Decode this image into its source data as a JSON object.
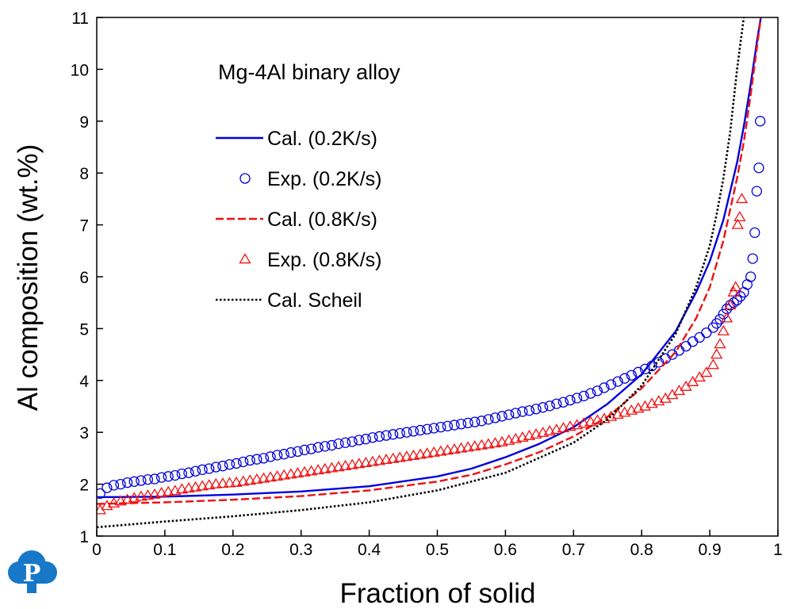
{
  "chart_data": {
    "type": "line",
    "title": "",
    "annotation": "Mg-4Al binary alloy",
    "xlabel": "Fraction of solid",
    "ylabel": "Al composition (wt.%)",
    "xlim": [
      0,
      1
    ],
    "ylim": [
      1,
      11
    ],
    "x_ticks": [
      0,
      0.1,
      0.2,
      0.3,
      0.4,
      0.5,
      0.6,
      0.7,
      0.8,
      0.9,
      1
    ],
    "x_tick_labels": [
      "0",
      "0.1",
      "0.2",
      "0.3",
      "0.4",
      "0.5",
      "0.6",
      "0.7",
      "0.8",
      "0.9",
      "1"
    ],
    "y_ticks": [
      1,
      2,
      3,
      4,
      5,
      6,
      7,
      8,
      9,
      10,
      11
    ],
    "y_tick_labels": [
      "1",
      "2",
      "3",
      "4",
      "5",
      "6",
      "7",
      "8",
      "9",
      "10",
      "11"
    ],
    "grid": false,
    "legend_position": "upper-left",
    "series": [
      {
        "name": "Cal. (0.2K/s)",
        "kind": "line",
        "style": "solid",
        "color": "#0000dd",
        "x": [
          0,
          0.1,
          0.2,
          0.3,
          0.4,
          0.5,
          0.55,
          0.6,
          0.65,
          0.7,
          0.75,
          0.8,
          0.85,
          0.88,
          0.9,
          0.92,
          0.94,
          0.95,
          0.96,
          0.97,
          0.975
        ],
        "y": [
          1.75,
          1.76,
          1.8,
          1.86,
          1.96,
          2.15,
          2.3,
          2.52,
          2.78,
          3.1,
          3.55,
          4.12,
          4.95,
          5.7,
          6.3,
          7.1,
          8.2,
          8.9,
          9.7,
          10.6,
          11.0
        ]
      },
      {
        "name": "Exp. (0.2K/s)",
        "kind": "scatter",
        "marker": "circle",
        "color": "#0000dd",
        "x": [
          0.005,
          0.015,
          0.025,
          0.035,
          0.045,
          0.055,
          0.065,
          0.075,
          0.085,
          0.095,
          0.105,
          0.115,
          0.125,
          0.135,
          0.145,
          0.155,
          0.165,
          0.175,
          0.185,
          0.195,
          0.205,
          0.215,
          0.225,
          0.235,
          0.245,
          0.255,
          0.265,
          0.275,
          0.285,
          0.295,
          0.305,
          0.315,
          0.325,
          0.335,
          0.345,
          0.355,
          0.365,
          0.375,
          0.385,
          0.395,
          0.405,
          0.415,
          0.425,
          0.435,
          0.445,
          0.455,
          0.465,
          0.475,
          0.485,
          0.495,
          0.505,
          0.515,
          0.525,
          0.535,
          0.545,
          0.555,
          0.565,
          0.575,
          0.585,
          0.595,
          0.605,
          0.615,
          0.625,
          0.635,
          0.645,
          0.655,
          0.665,
          0.675,
          0.685,
          0.695,
          0.705,
          0.715,
          0.725,
          0.735,
          0.745,
          0.755,
          0.765,
          0.775,
          0.785,
          0.795,
          0.805,
          0.815,
          0.825,
          0.835,
          0.845,
          0.855,
          0.865,
          0.875,
          0.885,
          0.895,
          0.905,
          0.91,
          0.915,
          0.92,
          0.925,
          0.93,
          0.935,
          0.94,
          0.945,
          0.95,
          0.955,
          0.96,
          0.963,
          0.966,
          0.969,
          0.972,
          0.974
        ],
        "y": [
          1.82,
          1.93,
          1.98,
          2.0,
          2.03,
          2.05,
          2.07,
          2.09,
          2.1,
          2.13,
          2.15,
          2.17,
          2.2,
          2.22,
          2.25,
          2.28,
          2.3,
          2.33,
          2.35,
          2.38,
          2.4,
          2.43,
          2.46,
          2.48,
          2.5,
          2.53,
          2.56,
          2.58,
          2.61,
          2.63,
          2.66,
          2.68,
          2.71,
          2.73,
          2.75,
          2.78,
          2.8,
          2.82,
          2.85,
          2.87,
          2.9,
          2.92,
          2.94,
          2.96,
          2.98,
          3.0,
          3.02,
          3.04,
          3.06,
          3.08,
          3.1,
          3.12,
          3.14,
          3.16,
          3.18,
          3.2,
          3.22,
          3.25,
          3.28,
          3.31,
          3.34,
          3.37,
          3.4,
          3.42,
          3.45,
          3.48,
          3.51,
          3.55,
          3.58,
          3.62,
          3.66,
          3.7,
          3.75,
          3.8,
          3.86,
          3.92,
          3.98,
          4.04,
          4.1,
          4.16,
          4.22,
          4.28,
          4.35,
          4.42,
          4.5,
          4.58,
          4.66,
          4.75,
          4.83,
          4.92,
          5.02,
          5.1,
          5.18,
          5.28,
          5.38,
          5.45,
          5.5,
          5.55,
          5.62,
          5.7,
          5.85,
          6.0,
          6.35,
          6.85,
          7.65,
          8.1,
          9.0
        ]
      },
      {
        "name": "Cal. (0.8K/s)",
        "kind": "line",
        "style": "dashed",
        "color": "#ee1111",
        "x": [
          0,
          0.1,
          0.2,
          0.3,
          0.4,
          0.5,
          0.55,
          0.6,
          0.65,
          0.7,
          0.75,
          0.8,
          0.85,
          0.88,
          0.9,
          0.92,
          0.94,
          0.95,
          0.96,
          0.97,
          0.975
        ],
        "y": [
          1.62,
          1.65,
          1.7,
          1.77,
          1.88,
          2.05,
          2.18,
          2.38,
          2.62,
          2.92,
          3.3,
          3.85,
          4.55,
          5.2,
          5.8,
          6.7,
          7.9,
          8.6,
          9.5,
          10.5,
          11.0
        ]
      },
      {
        "name": "Exp. (0.8K/s)",
        "kind": "scatter",
        "marker": "triangle",
        "color": "#ee1111",
        "x": [
          0.005,
          0.015,
          0.025,
          0.035,
          0.045,
          0.055,
          0.065,
          0.075,
          0.085,
          0.095,
          0.105,
          0.115,
          0.125,
          0.135,
          0.145,
          0.155,
          0.165,
          0.175,
          0.185,
          0.195,
          0.205,
          0.215,
          0.225,
          0.235,
          0.245,
          0.255,
          0.265,
          0.275,
          0.285,
          0.295,
          0.305,
          0.315,
          0.325,
          0.335,
          0.345,
          0.355,
          0.365,
          0.375,
          0.385,
          0.395,
          0.405,
          0.415,
          0.425,
          0.435,
          0.445,
          0.455,
          0.465,
          0.475,
          0.485,
          0.495,
          0.505,
          0.515,
          0.525,
          0.535,
          0.545,
          0.555,
          0.565,
          0.575,
          0.585,
          0.595,
          0.605,
          0.615,
          0.625,
          0.635,
          0.645,
          0.655,
          0.665,
          0.675,
          0.685,
          0.695,
          0.705,
          0.715,
          0.725,
          0.735,
          0.745,
          0.755,
          0.765,
          0.775,
          0.785,
          0.795,
          0.805,
          0.815,
          0.825,
          0.835,
          0.845,
          0.855,
          0.865,
          0.875,
          0.885,
          0.895,
          0.905,
          0.91,
          0.915,
          0.92,
          0.925,
          0.93,
          0.935,
          0.938,
          0.941,
          0.944,
          0.947
        ],
        "y": [
          1.5,
          1.58,
          1.63,
          1.67,
          1.7,
          1.73,
          1.76,
          1.78,
          1.8,
          1.83,
          1.85,
          1.87,
          1.9,
          1.92,
          1.94,
          1.96,
          1.98,
          2.0,
          2.01,
          2.02,
          2.03,
          2.05,
          2.07,
          2.09,
          2.11,
          2.13,
          2.15,
          2.17,
          2.19,
          2.21,
          2.23,
          2.25,
          2.27,
          2.29,
          2.31,
          2.33,
          2.35,
          2.37,
          2.39,
          2.41,
          2.43,
          2.45,
          2.47,
          2.49,
          2.51,
          2.53,
          2.55,
          2.57,
          2.59,
          2.61,
          2.63,
          2.65,
          2.67,
          2.69,
          2.71,
          2.73,
          2.75,
          2.77,
          2.79,
          2.81,
          2.84,
          2.87,
          2.9,
          2.93,
          2.96,
          2.99,
          3.02,
          3.05,
          3.08,
          3.11,
          3.14,
          3.17,
          3.2,
          3.23,
          3.26,
          3.3,
          3.34,
          3.38,
          3.42,
          3.46,
          3.5,
          3.55,
          3.6,
          3.65,
          3.72,
          3.8,
          3.88,
          3.97,
          4.06,
          4.15,
          4.3,
          4.5,
          4.7,
          4.95,
          5.2,
          5.45,
          5.7,
          5.8,
          7.0,
          7.15,
          7.5
        ]
      },
      {
        "name": "Cal. Scheil",
        "kind": "line",
        "style": "dotted",
        "color": "#000000",
        "x": [
          0,
          0.1,
          0.2,
          0.3,
          0.4,
          0.5,
          0.6,
          0.7,
          0.75,
          0.8,
          0.85,
          0.88,
          0.9,
          0.91,
          0.92,
          0.93,
          0.94,
          0.95
        ],
        "y": [
          1.17,
          1.28,
          1.38,
          1.5,
          1.65,
          1.88,
          2.22,
          2.8,
          3.25,
          3.9,
          4.9,
          5.8,
          6.6,
          7.2,
          7.9,
          8.8,
          10.0,
          11.0
        ]
      }
    ]
  },
  "logo": {
    "icon": "p-cloud-logo",
    "letter": "P",
    "color": "#1878c8"
  }
}
